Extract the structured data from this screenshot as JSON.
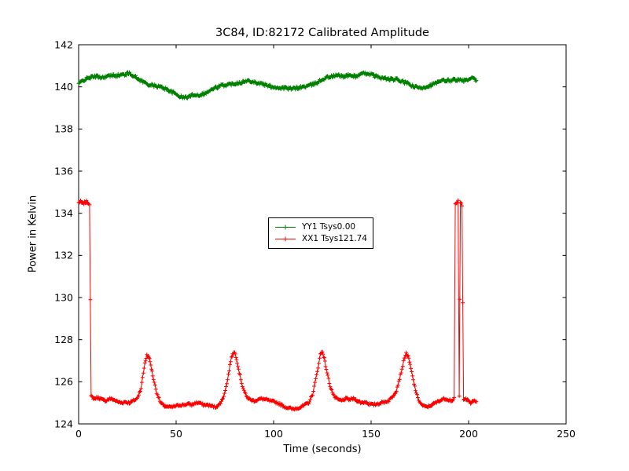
{
  "figure": {
    "background": "#ffffff",
    "frame_color": "#000000"
  },
  "chart_data": {
    "type": "line",
    "title": "3C84, ID:82172 Calibrated Amplitude",
    "xlabel": "Time (seconds)",
    "ylabel": "Power in Kelvin",
    "xlim": [
      0,
      250
    ],
    "ylim": [
      124,
      142
    ],
    "xticks": [
      0,
      50,
      100,
      150,
      200,
      250
    ],
    "yticks": [
      124,
      126,
      128,
      130,
      132,
      134,
      136,
      138,
      140,
      142
    ],
    "grid": false,
    "legend_position": "center",
    "marker": "+",
    "series": [
      {
        "name": "YY1 Tsys0.00",
        "color": "#008000",
        "marker": "+",
        "noise": 0.07,
        "seed": 42,
        "points": [
          [
            0,
            140.15
          ],
          [
            3,
            140.35
          ],
          [
            6,
            140.45
          ],
          [
            9,
            140.5
          ],
          [
            12,
            140.45
          ],
          [
            15,
            140.5
          ],
          [
            18,
            140.55
          ],
          [
            21,
            140.55
          ],
          [
            24,
            140.6
          ],
          [
            26,
            140.65
          ],
          [
            28,
            140.55
          ],
          [
            30,
            140.4
          ],
          [
            33,
            140.25
          ],
          [
            36,
            140.1
          ],
          [
            39,
            140.05
          ],
          [
            42,
            140.0
          ],
          [
            45,
            139.9
          ],
          [
            48,
            139.75
          ],
          [
            51,
            139.6
          ],
          [
            53,
            139.5
          ],
          [
            55,
            139.5
          ],
          [
            57,
            139.55
          ],
          [
            59,
            139.65
          ],
          [
            61,
            139.6
          ],
          [
            63,
            139.65
          ],
          [
            65,
            139.7
          ],
          [
            67,
            139.8
          ],
          [
            70,
            139.95
          ],
          [
            73,
            140.05
          ],
          [
            76,
            140.1
          ],
          [
            79,
            140.15
          ],
          [
            82,
            140.2
          ],
          [
            85,
            140.25
          ],
          [
            88,
            140.3
          ],
          [
            91,
            140.2
          ],
          [
            94,
            140.15
          ],
          [
            97,
            140.05
          ],
          [
            100,
            140.0
          ],
          [
            103,
            139.95
          ],
          [
            106,
            139.95
          ],
          [
            109,
            139.9
          ],
          [
            112,
            139.95
          ],
          [
            115,
            140.0
          ],
          [
            118,
            140.05
          ],
          [
            121,
            140.15
          ],
          [
            124,
            140.3
          ],
          [
            127,
            140.45
          ],
          [
            130,
            140.5
          ],
          [
            133,
            140.55
          ],
          [
            136,
            140.5
          ],
          [
            139,
            140.55
          ],
          [
            142,
            140.5
          ],
          [
            145,
            140.6
          ],
          [
            148,
            140.65
          ],
          [
            151,
            140.55
          ],
          [
            154,
            140.45
          ],
          [
            157,
            140.4
          ],
          [
            160,
            140.35
          ],
          [
            163,
            140.35
          ],
          [
            166,
            140.25
          ],
          [
            169,
            140.15
          ],
          [
            172,
            140.0
          ],
          [
            175,
            139.95
          ],
          [
            178,
            140.0
          ],
          [
            181,
            140.1
          ],
          [
            184,
            140.2
          ],
          [
            187,
            140.3
          ],
          [
            190,
            140.3
          ],
          [
            193,
            140.35
          ],
          [
            196,
            140.3
          ],
          [
            199,
            140.3
          ],
          [
            202,
            140.4
          ],
          [
            204,
            140.3
          ]
        ]
      },
      {
        "name": "XX1 Tsys121.74",
        "color": "#ff0000",
        "marker": "+",
        "noise": 0.055,
        "seed": 7,
        "points": [
          [
            0,
            134.5
          ],
          [
            1,
            134.55
          ],
          [
            2,
            134.45
          ],
          [
            3,
            134.5
          ],
          [
            4,
            134.55
          ],
          [
            5,
            134.5
          ],
          [
            5.6,
            134.45
          ],
          [
            6.4,
            125.3
          ],
          [
            8,
            125.2
          ],
          [
            10,
            125.25
          ],
          [
            12,
            125.15
          ],
          [
            14,
            125.1
          ],
          [
            16,
            125.2
          ],
          [
            18,
            125.15
          ],
          [
            20,
            125.05
          ],
          [
            22,
            125.0
          ],
          [
            24,
            125.05
          ],
          [
            26,
            125.0
          ],
          [
            28,
            125.1
          ],
          [
            30,
            125.2
          ],
          [
            32,
            125.7
          ],
          [
            34,
            126.9
          ],
          [
            35,
            127.25
          ],
          [
            36,
            127.2
          ],
          [
            37,
            126.8
          ],
          [
            38,
            126.3
          ],
          [
            40,
            125.5
          ],
          [
            42,
            125.0
          ],
          [
            44,
            124.85
          ],
          [
            46,
            124.8
          ],
          [
            48,
            124.8
          ],
          [
            50,
            124.85
          ],
          [
            52,
            124.9
          ],
          [
            54,
            124.9
          ],
          [
            56,
            124.95
          ],
          [
            58,
            124.9
          ],
          [
            60,
            125.0
          ],
          [
            62,
            125.0
          ],
          [
            64,
            124.9
          ],
          [
            66,
            124.9
          ],
          [
            68,
            124.85
          ],
          [
            70,
            124.8
          ],
          [
            72,
            124.9
          ],
          [
            74,
            125.2
          ],
          [
            76,
            125.9
          ],
          [
            78,
            127.0
          ],
          [
            79,
            127.35
          ],
          [
            80,
            127.4
          ],
          [
            81,
            127.1
          ],
          [
            82,
            126.6
          ],
          [
            84,
            125.8
          ],
          [
            86,
            125.3
          ],
          [
            88,
            125.15
          ],
          [
            90,
            125.1
          ],
          [
            92,
            125.15
          ],
          [
            94,
            125.2
          ],
          [
            96,
            125.15
          ],
          [
            98,
            125.1
          ],
          [
            100,
            125.05
          ],
          [
            102,
            125.0
          ],
          [
            104,
            124.9
          ],
          [
            106,
            124.8
          ],
          [
            108,
            124.75
          ],
          [
            110,
            124.7
          ],
          [
            112,
            124.75
          ],
          [
            114,
            124.8
          ],
          [
            116,
            124.9
          ],
          [
            118,
            125.0
          ],
          [
            120,
            125.4
          ],
          [
            122,
            126.3
          ],
          [
            124,
            127.3
          ],
          [
            125,
            127.45
          ],
          [
            126,
            127.1
          ],
          [
            127,
            126.6
          ],
          [
            129,
            125.8
          ],
          [
            131,
            125.3
          ],
          [
            133,
            125.15
          ],
          [
            135,
            125.1
          ],
          [
            137,
            125.2
          ],
          [
            139,
            125.15
          ],
          [
            141,
            125.2
          ],
          [
            143,
            125.1
          ],
          [
            145,
            125.0
          ],
          [
            147,
            125.05
          ],
          [
            149,
            124.95
          ],
          [
            151,
            124.9
          ],
          [
            153,
            124.95
          ],
          [
            155,
            125.0
          ],
          [
            157,
            125.05
          ],
          [
            159,
            125.1
          ],
          [
            161,
            125.3
          ],
          [
            163,
            125.6
          ],
          [
            165,
            126.3
          ],
          [
            167,
            127.1
          ],
          [
            168,
            127.35
          ],
          [
            169,
            127.2
          ],
          [
            170,
            126.8
          ],
          [
            172,
            125.9
          ],
          [
            174,
            125.2
          ],
          [
            176,
            124.9
          ],
          [
            178,
            124.8
          ],
          [
            180,
            124.85
          ],
          [
            182,
            124.95
          ],
          [
            184,
            125.05
          ],
          [
            186,
            125.15
          ],
          [
            188,
            125.2
          ],
          [
            190,
            125.15
          ],
          [
            191.5,
            125.1
          ],
          [
            192.6,
            125.2
          ],
          [
            193.2,
            134.4
          ],
          [
            194,
            134.5
          ],
          [
            194.6,
            134.6
          ],
          [
            195.2,
            125.3
          ],
          [
            195.8,
            134.5
          ],
          [
            196.6,
            134.4
          ],
          [
            197.4,
            125.2
          ],
          [
            199,
            125.15
          ],
          [
            201,
            125.0
          ],
          [
            203,
            125.1
          ],
          [
            204,
            125.05
          ]
        ]
      }
    ]
  }
}
